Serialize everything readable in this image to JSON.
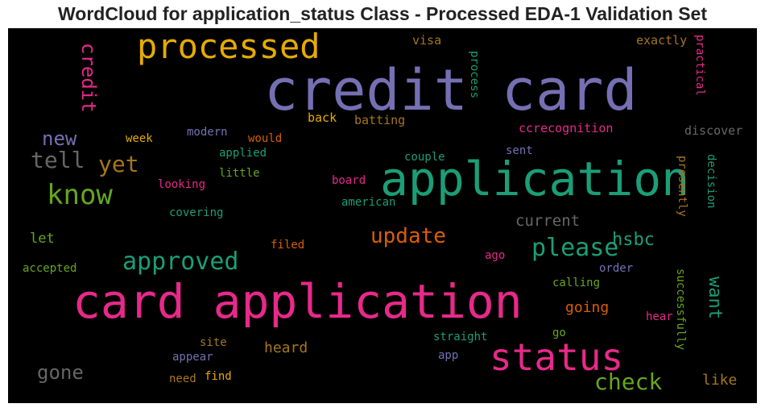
{
  "chart_data": {
    "type": "wordcloud",
    "title": "WordCloud for application_status Class - Processed EDA-1 Validation Set",
    "background": "#000000",
    "words": [
      {
        "text": "credit card",
        "color": "#7570b3"
      },
      {
        "text": "card application",
        "color": "#e7298a"
      },
      {
        "text": "application",
        "color": "#1b9e77"
      },
      {
        "text": "status",
        "color": "#e7298a"
      },
      {
        "text": "processed",
        "color": "#e6ab02"
      },
      {
        "text": "know",
        "color": "#66a61e"
      },
      {
        "text": "approved",
        "color": "#1b9e77"
      },
      {
        "text": "please",
        "color": "#1b9e77"
      },
      {
        "text": "update",
        "color": "#d95f02"
      },
      {
        "text": "check",
        "color": "#66a61e"
      },
      {
        "text": "credit",
        "color": "#e7298a"
      },
      {
        "text": "tell",
        "color": "#666666"
      },
      {
        "text": "yet",
        "color": "#a6761d"
      },
      {
        "text": "new",
        "color": "#7570b3"
      },
      {
        "text": "hsbc",
        "color": "#1b9e77"
      },
      {
        "text": "current",
        "color": "#666666"
      },
      {
        "text": "want",
        "color": "#1b9e77"
      },
      {
        "text": "gone",
        "color": "#666666"
      },
      {
        "text": "going",
        "color": "#d95f02"
      },
      {
        "text": "heard",
        "color": "#a6761d"
      },
      {
        "text": "like",
        "color": "#a6761d"
      },
      {
        "text": "let",
        "color": "#66a61e"
      },
      {
        "text": "visa",
        "color": "#a6761d"
      },
      {
        "text": "exactly",
        "color": "#a6761d"
      },
      {
        "text": "practical",
        "color": "#e7298a"
      },
      {
        "text": "process",
        "color": "#1b9e77"
      },
      {
        "text": "back",
        "color": "#e6ab02"
      },
      {
        "text": "batting",
        "color": "#a6761d"
      },
      {
        "text": "ccrecognition",
        "color": "#e7298a"
      },
      {
        "text": "discover",
        "color": "#666666"
      },
      {
        "text": "week",
        "color": "#e6ab02"
      },
      {
        "text": "modern",
        "color": "#7570b3"
      },
      {
        "text": "would",
        "color": "#d95f02"
      },
      {
        "text": "sent",
        "color": "#7570b3"
      },
      {
        "text": "applied",
        "color": "#1b9e77"
      },
      {
        "text": "couple",
        "color": "#1b9e77"
      },
      {
        "text": "little",
        "color": "#66a61e"
      },
      {
        "text": "looking",
        "color": "#e7298a"
      },
      {
        "text": "board",
        "color": "#e7298a"
      },
      {
        "text": "american",
        "color": "#1b9e77"
      },
      {
        "text": "decision",
        "color": "#1b9e77"
      },
      {
        "text": "presently",
        "color": "#a6761d"
      },
      {
        "text": "covering",
        "color": "#1b9e77"
      },
      {
        "text": "filed",
        "color": "#d95f02"
      },
      {
        "text": "accepted",
        "color": "#66a61e"
      },
      {
        "text": "ago",
        "color": "#e7298a"
      },
      {
        "text": "order",
        "color": "#7570b3"
      },
      {
        "text": "calling",
        "color": "#66a61e"
      },
      {
        "text": "successfully",
        "color": "#66a61e"
      },
      {
        "text": "hear",
        "color": "#e7298a"
      },
      {
        "text": "straight",
        "color": "#1b9e77"
      },
      {
        "text": "go",
        "color": "#66a61e"
      },
      {
        "text": "site",
        "color": "#a6761d"
      },
      {
        "text": "appear",
        "color": "#7570b3"
      },
      {
        "text": "app",
        "color": "#7570b3"
      },
      {
        "text": "need",
        "color": "#a6761d"
      },
      {
        "text": "find",
        "color": "#e6ab02"
      }
    ]
  }
}
